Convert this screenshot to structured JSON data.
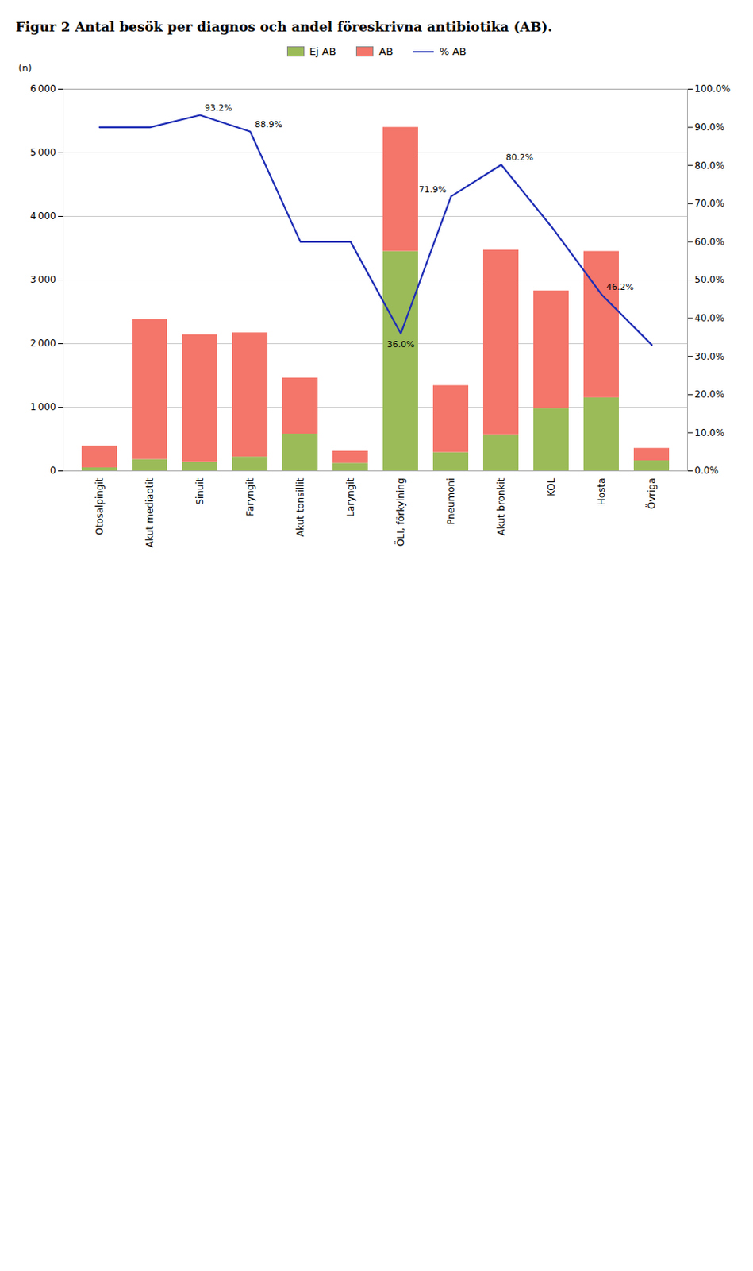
{
  "chart_data": {
    "type": "bar",
    "title": "Figur 2  Antal besök per diagnos och andel föreskrivna antibiotika (AB).",
    "categories": [
      "Otosalpingit",
      "Akut mediaotit",
      "Sinuit",
      "Faryngit",
      "Akut tonsillit",
      "Laryngit",
      "ÖLI, förkylning",
      "Pneumoni",
      "Akut bronkit",
      "KOL",
      "Hosta",
      "Övriga"
    ],
    "stacked": true,
    "series": [
      {
        "name": "Ej AB",
        "color": "#9BBB59",
        "values": [
          50,
          180,
          140,
          220,
          580,
          120,
          3450,
          290,
          570,
          980,
          1150,
          160
        ]
      },
      {
        "name": "AB",
        "color": "#F4756A",
        "values": [
          340,
          2200,
          2000,
          1950,
          880,
          190,
          1950,
          1050,
          2900,
          1850,
          2300,
          195
        ]
      },
      {
        "name": "% AB",
        "type": "line",
        "axis": "y2",
        "color": "#1F2EB5",
        "values": [
          90.0,
          90.0,
          93.2,
          88.9,
          60.0,
          60.0,
          36.0,
          71.9,
          80.2,
          64.0,
          46.2,
          33.0
        ]
      }
    ],
    "ylabel": "(n)",
    "ylim": [
      0,
      6000
    ],
    "yticks": [
      0,
      {
        "value": 1000,
        "label": "1 000"
      },
      {
        "value": 2000,
        "label": "2 000"
      },
      {
        "value": 3000,
        "label": "3 000"
      },
      {
        "value": 4000,
        "label": "4 000"
      },
      {
        "value": 5000,
        "label": "5 000"
      },
      {
        "value": 6000,
        "label": "6 000"
      }
    ],
    "y2lim": [
      0.0,
      100.0
    ],
    "y2ticks": [
      {
        "value": 0,
        "label": "0.0%"
      },
      {
        "value": 10,
        "label": "10.0%"
      },
      {
        "value": 20,
        "label": "20.0%"
      },
      {
        "value": 30,
        "label": "30.0%"
      },
      {
        "value": 40,
        "label": "40.0%"
      },
      {
        "value": 50,
        "label": "50.0%"
      },
      {
        "value": 60,
        "label": "60.0%"
      },
      {
        "value": 70,
        "label": "70.0%"
      },
      {
        "value": 80,
        "label": "80.0%"
      },
      {
        "value": 90,
        "label": "90.0%"
      },
      {
        "value": 100,
        "label": "100.0%"
      }
    ],
    "grid": true,
    "legend": "top",
    "annotations": [
      {
        "text": "93.2%",
        "x": "Sinuit",
        "y": 93.2
      },
      {
        "text": "88.9%",
        "x": "Faryngit",
        "y": 88.9
      },
      {
        "text": "36.0%",
        "x": "ÖLI, förkylning",
        "y": 36.0
      },
      {
        "text": "71.9%",
        "x": "Pneumoni",
        "y": 71.9
      },
      {
        "text": "80.2%",
        "x": "Akut bronkit",
        "y": 80.2
      },
      {
        "text": "46.2%",
        "x": "Hosta",
        "y": 46.2
      }
    ]
  }
}
